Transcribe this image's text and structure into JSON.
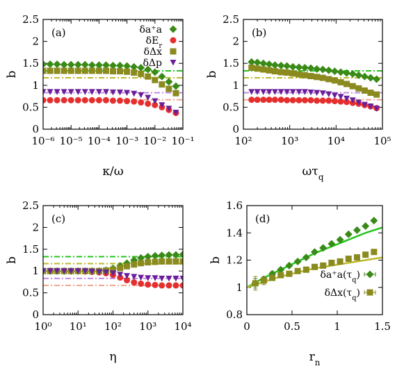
{
  "chart_data": [
    {
      "panel": "(a)",
      "type": "scatter",
      "xlabel": "κ/ω",
      "ylabel": "b",
      "xscale": "log",
      "xlim": [
        1e-06,
        0.1
      ],
      "ylim": [
        0,
        2.5
      ],
      "xticks": [
        "10⁻⁶",
        "10⁻⁵",
        "10⁻⁴",
        "10⁻³",
        "10⁻²",
        "10⁻¹"
      ],
      "yticks": [
        "0",
        "0.5",
        "1",
        "1.5",
        "2",
        "2.5"
      ],
      "legend_position": "top-right",
      "series": [
        {
          "name": "δa⁺a",
          "color": "#3a8a17",
          "marker": "diamond",
          "x": [
            1e-06,
            1.78e-06,
            3.16e-06,
            5.62e-06,
            1e-05,
            1.78e-05,
            3.16e-05,
            5.62e-05,
            0.0001,
            0.000178,
            0.000316,
            0.000562,
            0.001,
            0.00178,
            0.00316,
            0.00562,
            0.01,
            0.0178,
            0.0316,
            0.0562
          ],
          "y": [
            1.48,
            1.48,
            1.48,
            1.47,
            1.47,
            1.47,
            1.47,
            1.46,
            1.46,
            1.46,
            1.45,
            1.45,
            1.44,
            1.42,
            1.4,
            1.36,
            1.3,
            1.2,
            1.08,
            0.98
          ]
        },
        {
          "name": "δE_r",
          "color": "#e52f2f",
          "marker": "circle",
          "x": [
            1e-06,
            1.78e-06,
            3.16e-06,
            5.62e-06,
            1e-05,
            1.78e-05,
            3.16e-05,
            5.62e-05,
            0.0001,
            0.000178,
            0.000316,
            0.000562,
            0.001,
            0.00178,
            0.00316,
            0.00562,
            0.01,
            0.0178,
            0.0316,
            0.0562
          ],
          "y": [
            0.66,
            0.66,
            0.66,
            0.66,
            0.66,
            0.66,
            0.66,
            0.66,
            0.66,
            0.66,
            0.65,
            0.65,
            0.64,
            0.63,
            0.61,
            0.58,
            0.55,
            0.5,
            0.44,
            0.37
          ]
        },
        {
          "name": "δΔx",
          "color": "#8a8a1f",
          "marker": "square",
          "x": [
            1e-06,
            1.78e-06,
            3.16e-06,
            5.62e-06,
            1e-05,
            1.78e-05,
            3.16e-05,
            5.62e-05,
            0.0001,
            0.000178,
            0.000316,
            0.000562,
            0.001,
            0.00178,
            0.00316,
            0.00562,
            0.01,
            0.0178,
            0.0316,
            0.0562
          ],
          "y": [
            1.33,
            1.33,
            1.33,
            1.33,
            1.33,
            1.33,
            1.33,
            1.33,
            1.33,
            1.33,
            1.32,
            1.32,
            1.31,
            1.29,
            1.26,
            1.2,
            1.12,
            1.02,
            0.92,
            0.82
          ]
        },
        {
          "name": "δΔp",
          "color": "#6a1f9a",
          "marker": "triangle-down",
          "x": [
            1e-06,
            1.78e-06,
            3.16e-06,
            5.62e-06,
            1e-05,
            1.78e-05,
            3.16e-05,
            5.62e-05,
            0.0001,
            0.000178,
            0.000316,
            0.000562,
            0.001,
            0.00178,
            0.00316,
            0.00562,
            0.01,
            0.0178,
            0.0316,
            0.0562
          ],
          "y": [
            0.85,
            0.85,
            0.85,
            0.85,
            0.85,
            0.85,
            0.85,
            0.85,
            0.85,
            0.85,
            0.84,
            0.84,
            0.83,
            0.81,
            0.78,
            0.72,
            0.64,
            0.55,
            0.47,
            0.38
          ]
        }
      ],
      "reference_lines": [
        {
          "y": 1.33,
          "color": "#22c41a"
        },
        {
          "y": 1.17,
          "color": "#b9b92a"
        },
        {
          "y": 0.83,
          "color": "#c08ae0"
        },
        {
          "y": 0.67,
          "color": "#f0a58a"
        }
      ]
    },
    {
      "panel": "(b)",
      "type": "scatter",
      "xlabel": "ωτ_q",
      "ylabel": "b",
      "xscale": "log",
      "xlim": [
        100,
        100000
      ],
      "ylim": [
        0,
        2.5
      ],
      "xticks": [
        "10²",
        "10³",
        "10⁴",
        "10⁵"
      ],
      "yticks": [
        "0",
        "0.5",
        "1",
        "1.5",
        "2",
        "2.5"
      ],
      "series": [
        {
          "name": "δa⁺a",
          "color": "#3a8a17",
          "marker": "diamond",
          "x": [
            150,
            200,
            270,
            360,
            480,
            650,
            870,
            1170,
            1580,
            2120,
            2850,
            3840,
            5160,
            6950,
            9350,
            12600,
            16900,
            22800,
            30700,
            41300,
            55600,
            74800
          ],
          "y": [
            1.53,
            1.52,
            1.5,
            1.48,
            1.46,
            1.45,
            1.44,
            1.42,
            1.41,
            1.4,
            1.39,
            1.37,
            1.36,
            1.34,
            1.32,
            1.3,
            1.28,
            1.26,
            1.23,
            1.2,
            1.17,
            1.14
          ]
        },
        {
          "name": "δE_r",
          "color": "#e52f2f",
          "marker": "circle",
          "x": [
            150,
            200,
            270,
            360,
            480,
            650,
            870,
            1170,
            1580,
            2120,
            2850,
            3840,
            5160,
            6950,
            9350,
            12600,
            16900,
            22800,
            30700,
            41300,
            55600,
            74800
          ],
          "y": [
            0.67,
            0.67,
            0.67,
            0.67,
            0.67,
            0.67,
            0.66,
            0.66,
            0.66,
            0.66,
            0.66,
            0.65,
            0.65,
            0.65,
            0.64,
            0.63,
            0.62,
            0.6,
            0.58,
            0.55,
            0.52,
            0.48
          ]
        },
        {
          "name": "δΔx",
          "color": "#8a8a1f",
          "marker": "square",
          "x": [
            150,
            200,
            270,
            360,
            480,
            650,
            870,
            1170,
            1580,
            2120,
            2850,
            3840,
            5160,
            6950,
            9350,
            12600,
            16900,
            22800,
            30700,
            41300,
            55600,
            74800
          ],
          "y": [
            1.4,
            1.38,
            1.36,
            1.34,
            1.32,
            1.3,
            1.29,
            1.27,
            1.25,
            1.23,
            1.21,
            1.19,
            1.17,
            1.14,
            1.11,
            1.07,
            1.03,
            0.98,
            0.93,
            0.88,
            0.83,
            0.79
          ]
        },
        {
          "name": "δΔp",
          "color": "#6a1f9a",
          "marker": "triangle-down",
          "x": [
            150,
            200,
            270,
            360,
            480,
            650,
            870,
            1170,
            1580,
            2120,
            2850,
            3840,
            5160,
            6950,
            9350,
            12600,
            16900,
            22800,
            30700,
            41300,
            55600,
            74800
          ],
          "y": [
            0.85,
            0.85,
            0.85,
            0.85,
            0.85,
            0.85,
            0.85,
            0.85,
            0.85,
            0.85,
            0.84,
            0.83,
            0.82,
            0.8,
            0.77,
            0.74,
            0.7,
            0.66,
            0.61,
            0.56,
            0.52,
            0.47
          ]
        }
      ],
      "reference_lines": [
        {
          "y": 1.33,
          "color": "#22c41a"
        },
        {
          "y": 1.17,
          "color": "#b9b92a"
        },
        {
          "y": 0.83,
          "color": "#c08ae0"
        },
        {
          "y": 0.67,
          "color": "#f0a58a"
        }
      ]
    },
    {
      "panel": "(c)",
      "type": "scatter",
      "xlabel": "η",
      "ylabel": "b",
      "xscale": "log",
      "xlim": [
        1,
        10000
      ],
      "ylim": [
        0,
        2.5
      ],
      "xticks": [
        "10⁰",
        "10¹",
        "10²",
        "10³",
        "10⁴"
      ],
      "yticks": [
        "0",
        "0.5",
        "1",
        "1.5",
        "2",
        "2.5"
      ],
      "series": [
        {
          "name": "δa⁺a",
          "color": "#3a8a17",
          "marker": "diamond",
          "x": [
            1,
            1.6,
            2.5,
            4,
            6.3,
            10,
            16,
            25,
            40,
            63,
            100,
            160,
            250,
            400,
            630,
            1000,
            1600,
            2500,
            4000,
            6300,
            10000
          ],
          "y": [
            1.0,
            1.0,
            1.0,
            1.0,
            1.0,
            1.0,
            1.0,
            1.0,
            1.0,
            1.02,
            1.06,
            1.12,
            1.18,
            1.25,
            1.3,
            1.33,
            1.35,
            1.36,
            1.37,
            1.37,
            1.38
          ]
        },
        {
          "name": "δE_r",
          "color": "#e52f2f",
          "marker": "circle",
          "x": [
            1,
            1.6,
            2.5,
            4,
            6.3,
            10,
            16,
            25,
            40,
            63,
            100,
            160,
            250,
            400,
            630,
            1000,
            1600,
            2500,
            4000,
            6300,
            10000
          ],
          "y": [
            1.0,
            1.0,
            1.0,
            1.0,
            1.0,
            1.0,
            0.99,
            0.98,
            0.97,
            0.95,
            0.91,
            0.85,
            0.79,
            0.74,
            0.71,
            0.69,
            0.68,
            0.67,
            0.67,
            0.67,
            0.67
          ]
        },
        {
          "name": "δΔx",
          "color": "#8a8a1f",
          "marker": "square",
          "x": [
            1,
            1.6,
            2.5,
            4,
            6.3,
            10,
            16,
            25,
            40,
            63,
            100,
            160,
            250,
            400,
            630,
            1000,
            1600,
            2500,
            4000,
            6300,
            10000
          ],
          "y": [
            1.0,
            1.0,
            1.0,
            1.0,
            1.0,
            1.0,
            1.0,
            1.0,
            1.0,
            1.01,
            1.03,
            1.07,
            1.11,
            1.15,
            1.18,
            1.2,
            1.21,
            1.22,
            1.22,
            1.22,
            1.22
          ]
        },
        {
          "name": "δΔp",
          "color": "#6a1f9a",
          "marker": "triangle-down",
          "x": [
            1,
            1.6,
            2.5,
            4,
            6.3,
            10,
            16,
            25,
            40,
            63,
            100,
            160,
            250,
            400,
            630,
            1000,
            1600,
            2500,
            4000,
            6300,
            10000
          ],
          "y": [
            1.0,
            1.0,
            1.0,
            1.0,
            1.0,
            1.0,
            1.0,
            0.99,
            0.98,
            0.97,
            0.95,
            0.92,
            0.89,
            0.87,
            0.85,
            0.84,
            0.84,
            0.83,
            0.83,
            0.83,
            0.83
          ]
        }
      ],
      "reference_lines": [
        {
          "y": 1.33,
          "color": "#22c41a"
        },
        {
          "y": 1.17,
          "color": "#b9b92a"
        },
        {
          "y": 0.83,
          "color": "#c08ae0"
        },
        {
          "y": 0.67,
          "color": "#f0a58a"
        }
      ]
    },
    {
      "panel": "(d)",
      "type": "scatter",
      "xlabel": "r_n",
      "ylabel": "b",
      "xscale": "linear",
      "xlim": [
        0,
        1.6
      ],
      "ylim": [
        0.8,
        1.6
      ],
      "xticks": [
        "0",
        "0.5",
        "1",
        "1.5"
      ],
      "yticks": [
        "0.8",
        "1",
        "1.2",
        "1.4",
        "1.6"
      ],
      "legend_position": "bottom-right",
      "series": [
        {
          "name": "δa⁺a(τ_q)",
          "color": "#3a8a17",
          "marker": "diamond",
          "x": [
            0.1,
            0.2,
            0.3,
            0.4,
            0.5,
            0.6,
            0.7,
            0.8,
            0.9,
            1.0,
            1.1,
            1.2,
            1.3,
            1.4,
            1.5
          ],
          "y": [
            1.03,
            1.06,
            1.1,
            1.13,
            1.16,
            1.19,
            1.22,
            1.26,
            1.29,
            1.32,
            1.35,
            1.39,
            1.42,
            1.45,
            1.49
          ],
          "yerr": [
            0.035,
            0.02,
            0.015,
            0.01,
            0.01,
            0.01,
            0.01,
            0.01,
            0.01,
            0.01,
            0.01,
            0.01,
            0.01,
            0.01,
            0.01
          ]
        },
        {
          "name": "δΔx(τ_q)",
          "color": "#8a8a1f",
          "marker": "square",
          "x": [
            0.1,
            0.2,
            0.3,
            0.4,
            0.5,
            0.6,
            0.7,
            0.8,
            0.9,
            1.0,
            1.1,
            1.2,
            1.3,
            1.4,
            1.5
          ],
          "y": [
            1.03,
            1.05,
            1.07,
            1.09,
            1.1,
            1.12,
            1.13,
            1.15,
            1.16,
            1.18,
            1.19,
            1.21,
            1.22,
            1.24,
            1.26
          ],
          "yerr": [
            0.05,
            0.03,
            0.02,
            0.015,
            0.01,
            0.01,
            0.01,
            0.01,
            0.01,
            0.01,
            0.01,
            0.01,
            0.01,
            0.01,
            0.01
          ]
        }
      ],
      "curves": [
        {
          "color": "#22c41a",
          "x": [
            0,
            0.2,
            0.4,
            0.6,
            0.8,
            1.0,
            1.2,
            1.4,
            1.6
          ],
          "y": [
            1.0,
            1.07,
            1.13,
            1.19,
            1.25,
            1.3,
            1.35,
            1.4,
            1.44
          ]
        },
        {
          "color": "#b9b92a",
          "x": [
            0,
            0.2,
            0.4,
            0.6,
            0.8,
            1.0,
            1.2,
            1.4,
            1.6
          ],
          "y": [
            1.0,
            1.04,
            1.08,
            1.11,
            1.14,
            1.16,
            1.18,
            1.2,
            1.22
          ]
        }
      ]
    }
  ]
}
